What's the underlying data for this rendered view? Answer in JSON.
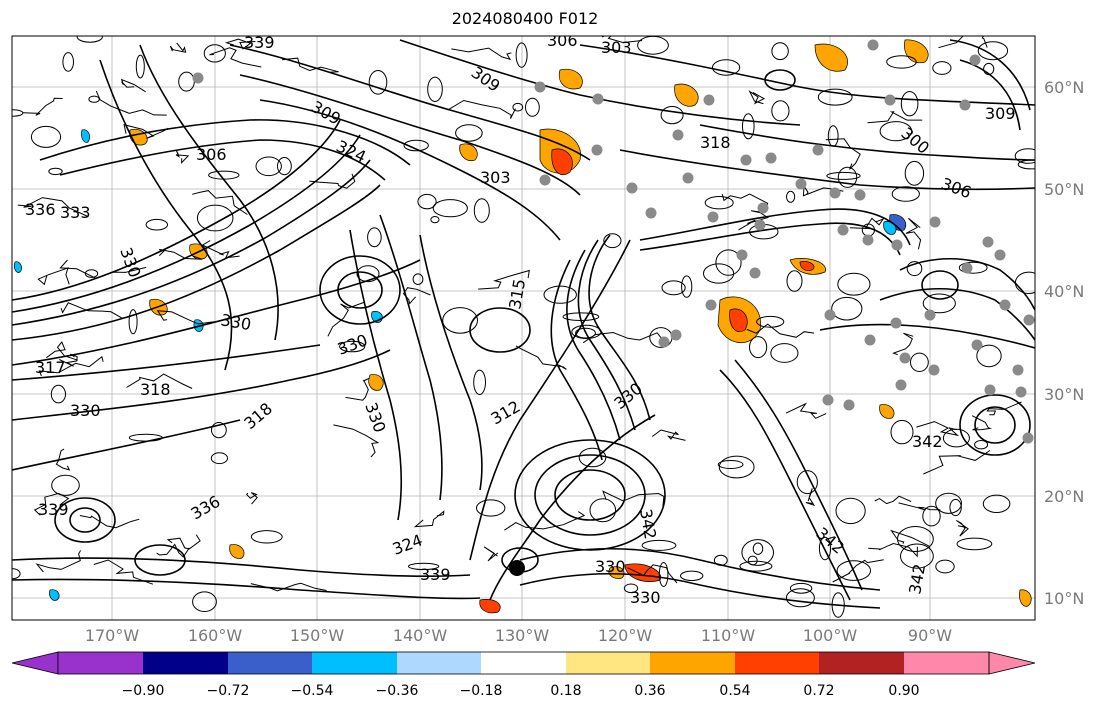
{
  "title": "2024080400 F012",
  "lat_labels": [
    "60°N",
    "50°N",
    "40°N",
    "30°N",
    "20°N",
    "10°N"
  ],
  "lon_labels": [
    "170°W",
    "160°W",
    "150°W",
    "140°W",
    "130°W",
    "120°W",
    "110°W",
    "100°W",
    "90°W"
  ],
  "colorbar": {
    "ticks": [
      "−0.90",
      "−0.72",
      "−0.54",
      "−0.36",
      "−0.18",
      "0.18",
      "0.36",
      "0.54",
      "0.72",
      "0.90"
    ],
    "colors": [
      "#9932cc",
      "#00008b",
      "#3a5fcd",
      "#00bfff",
      "#add8ff",
      "#ffffff",
      "#ffe680",
      "#ffa500",
      "#ff4000",
      "#b22222",
      "#ff88aa"
    ]
  },
  "contour_labels": [
    "339",
    "306",
    "303",
    "309",
    "318",
    "300",
    "306",
    "330",
    "336",
    "333",
    "306",
    "324",
    "303",
    "309",
    "330",
    "318",
    "315",
    "312",
    "330",
    "342",
    "342",
    "309",
    "330",
    "317",
    "330",
    "330",
    "318",
    "339",
    "336",
    "324",
    "339",
    "342",
    "330",
    "342",
    "330"
  ]
}
